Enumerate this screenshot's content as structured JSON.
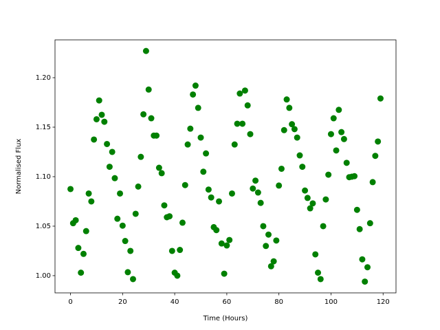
{
  "chart_data": {
    "type": "scatter",
    "x_label": "Time (Hours)",
    "y_label": "Normalised Flux",
    "color": "#008000",
    "x": [
      0,
      1,
      2,
      3,
      4,
      5,
      6,
      7,
      8,
      9,
      10,
      11,
      12,
      13,
      14,
      15,
      16,
      17,
      18,
      19,
      20,
      21,
      22,
      23,
      24,
      25,
      26,
      27,
      28,
      29,
      30,
      31,
      32,
      33,
      34,
      35,
      36,
      37,
      38,
      39,
      40,
      41,
      42,
      43,
      44,
      45,
      46,
      47,
      48,
      49,
      50,
      51,
      52,
      53,
      54,
      55,
      56,
      57,
      58,
      59,
      60,
      61,
      62,
      63,
      64,
      65,
      66,
      67,
      68,
      69,
      70,
      71,
      72,
      73,
      74,
      75,
      76,
      77,
      78,
      79,
      80,
      81,
      82,
      83,
      84,
      85,
      86,
      87,
      88,
      89,
      90,
      91,
      92,
      93,
      94,
      95,
      96,
      97,
      98,
      99,
      100,
      101,
      102,
      103,
      104,
      105,
      106,
      107,
      108,
      109,
      110,
      111,
      112,
      113,
      114,
      115,
      116,
      117,
      118,
      119
    ],
    "values": [
      1.0875,
      1.053,
      1.056,
      1.028,
      1.003,
      1.022,
      1.045,
      1.083,
      1.075,
      1.1375,
      1.158,
      1.177,
      1.1625,
      1.1555,
      1.133,
      1.11,
      1.125,
      1.0985,
      1.0575,
      1.083,
      1.0505,
      1.035,
      1.0035,
      1.025,
      0.9965,
      1.0625,
      1.09,
      1.12,
      1.163,
      1.227,
      1.188,
      1.159,
      1.1415,
      1.1415,
      1.109,
      1.1035,
      1.071,
      1.059,
      1.06,
      1.025,
      1.003,
      1.0,
      1.026,
      1.0535,
      1.0915,
      1.1325,
      1.1485,
      1.183,
      1.192,
      1.1695,
      1.1395,
      1.105,
      1.1235,
      1.087,
      1.079,
      1.049,
      1.046,
      1.075,
      1.0325,
      1.002,
      1.0305,
      1.036,
      1.083,
      1.1325,
      1.1535,
      1.184,
      1.1535,
      1.187,
      1.172,
      1.143,
      1.088,
      1.096,
      1.084,
      1.0735,
      1.05,
      1.03,
      1.0415,
      1.0095,
      1.0145,
      1.0355,
      1.091,
      1.108,
      1.147,
      1.178,
      1.1695,
      1.153,
      1.148,
      1.1395,
      1.1215,
      1.11,
      1.086,
      1.0785,
      1.068,
      1.073,
      1.0215,
      1.003,
      0.9965,
      1.05,
      1.077,
      1.102,
      1.143,
      1.159,
      1.1265,
      1.1675,
      1.145,
      1.138,
      1.114,
      1.0995,
      1.1,
      1.1005,
      1.0665,
      1.047,
      1.0165,
      0.994,
      1.0085,
      1.053,
      1.0945,
      1.121,
      1.1355,
      1.179
    ],
    "xlim": [
      -5.95,
      124.95
    ],
    "ylim": [
      0.9826,
      1.2382
    ],
    "xticks": [
      0,
      20,
      40,
      60,
      80,
      100,
      120
    ],
    "yticks": [
      {
        "value": 1.0,
        "label": "1.00"
      },
      {
        "value": 1.05,
        "label": "1.05"
      },
      {
        "value": 1.1,
        "label": "1.10"
      },
      {
        "value": 1.15,
        "label": "1.15"
      },
      {
        "value": 1.2,
        "label": "1.20"
      }
    ]
  }
}
